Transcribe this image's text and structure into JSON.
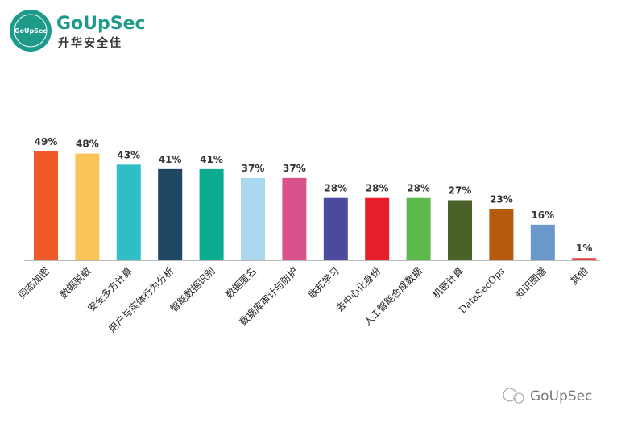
{
  "logo": {
    "badge": "GoUpSec",
    "name": "GoUpSec",
    "subtitle": "升华安全佳"
  },
  "watermark": "GoUpSec",
  "chart_data": {
    "type": "bar",
    "categories": [
      "同态加密",
      "数据脱敏",
      "安全多方计算",
      "用户与实体行为分析",
      "智能数据识别",
      "数据匿名",
      "数据库审计与防护",
      "联邦学习",
      "去中心化身份",
      "人工智能合成数据",
      "机密计算",
      "DataSecOps",
      "知识图谱",
      "其他"
    ],
    "values": [
      49,
      48,
      43,
      41,
      41,
      37,
      37,
      28,
      28,
      28,
      27,
      23,
      16,
      1
    ],
    "value_labels": [
      "49%",
      "48%",
      "43%",
      "41%",
      "41%",
      "37%",
      "37%",
      "28%",
      "28%",
      "28%",
      "27%",
      "23%",
      "16%",
      "1%"
    ],
    "colors": [
      "#f05a28",
      "#fcc55a",
      "#2fbdc6",
      "#1f4662",
      "#0bab8f",
      "#a9d8ef",
      "#d9528b",
      "#4b4b9d",
      "#e51e2a",
      "#5db949",
      "#4a6128",
      "#b55a0e",
      "#6c98c9",
      "#e8413f"
    ]
  }
}
